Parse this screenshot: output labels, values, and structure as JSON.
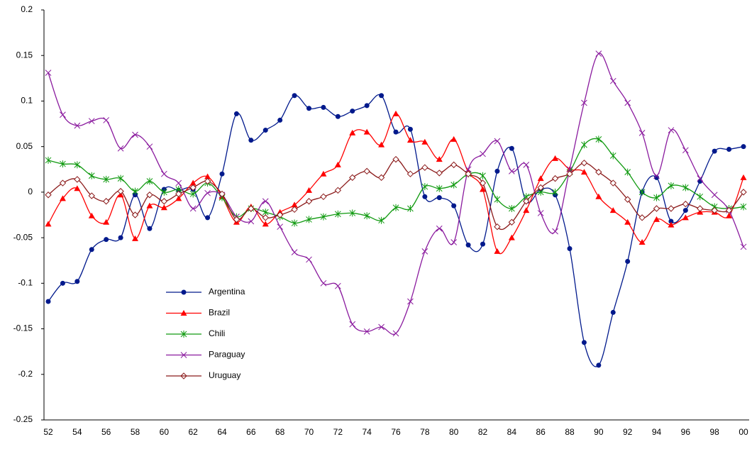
{
  "chart_data": {
    "type": "line",
    "categories": [
      "52",
      null,
      "54",
      null,
      "56",
      null,
      "58",
      null,
      "60",
      null,
      "62",
      null,
      "64",
      null,
      "66",
      null,
      "68",
      null,
      "70",
      null,
      "72",
      null,
      "74",
      null,
      "76",
      null,
      "78",
      null,
      "80",
      null,
      "82",
      null,
      "84",
      null,
      "86",
      null,
      "88",
      null,
      "90",
      null,
      "92",
      null,
      "94",
      null,
      "96",
      null,
      "98",
      null,
      "00"
    ],
    "ylim": [
      -0.25,
      0.2
    ],
    "yticks": [
      -0.25,
      -0.2,
      -0.15,
      -0.1,
      -0.05,
      0,
      0.05,
      0.1,
      0.15,
      0.2
    ],
    "legend": "left",
    "series": [
      {
        "name": "Argentina",
        "color": "#00198c",
        "marker": "circle",
        "values": [
          -0.12,
          -0.1,
          -0.098,
          -0.063,
          -0.052,
          -0.05,
          -0.003,
          -0.04,
          0.003,
          0.002,
          0.003,
          -0.028,
          0.02,
          0.086,
          0.057,
          0.068,
          0.079,
          0.106,
          0.092,
          0.093,
          0.083,
          0.089,
          0.095,
          0.106,
          0.066,
          0.069,
          -0.005,
          -0.006,
          -0.015,
          -0.058,
          -0.057,
          0.023,
          0.048,
          -0.01,
          0.003,
          -0.003,
          -0.062,
          -0.165,
          -0.19,
          -0.132,
          -0.076,
          0,
          0.016,
          -0.032,
          -0.02,
          0.012,
          0.045,
          0.047,
          0.05
        ]
      },
      {
        "name": "Brazil",
        "color": "#ff0000",
        "marker": "triangle",
        "values": [
          -0.035,
          -0.007,
          0.004,
          -0.026,
          -0.033,
          -0.003,
          -0.051,
          -0.015,
          -0.017,
          -0.007,
          0.01,
          0.017,
          -0.005,
          -0.033,
          -0.016,
          -0.035,
          -0.022,
          -0.014,
          0.002,
          0.02,
          0.03,
          0.065,
          0.066,
          0.052,
          0.086,
          0.057,
          0.055,
          0.036,
          0.058,
          0.022,
          0.003,
          -0.065,
          -0.05,
          -0.02,
          0.015,
          0.037,
          0.025,
          0.022,
          -0.005,
          -0.02,
          -0.033,
          -0.055,
          -0.03,
          -0.036,
          -0.028,
          -0.022,
          -0.022,
          -0.026,
          0.016
        ]
      },
      {
        "name": "Chili",
        "color": "#109a10",
        "marker": "star",
        "values": [
          0.035,
          0.031,
          0.03,
          0.018,
          0.014,
          0.015,
          0.001,
          0.012,
          0,
          0.003,
          -0.002,
          0.01,
          -0.006,
          -0.027,
          -0.018,
          -0.022,
          -0.027,
          -0.034,
          -0.03,
          -0.027,
          -0.024,
          -0.023,
          -0.026,
          -0.031,
          -0.017,
          -0.018,
          0.006,
          0.004,
          0.008,
          0.02,
          0.018,
          -0.008,
          -0.018,
          -0.005,
          0,
          0,
          0.022,
          0.052,
          0.058,
          0.04,
          0.022,
          0,
          -0.006,
          0.007,
          0.005,
          -0.005,
          -0.016,
          -0.018,
          -0.016
        ]
      },
      {
        "name": "Paraguay",
        "color": "#8a1a9e",
        "marker": "x",
        "values": [
          0.131,
          0.085,
          0.073,
          0.078,
          0.079,
          0.048,
          0.063,
          0.05,
          0.02,
          0.01,
          -0.018,
          -0.001,
          -0.003,
          -0.027,
          -0.032,
          -0.01,
          -0.038,
          -0.066,
          -0.074,
          -0.1,
          -0.103,
          -0.145,
          -0.153,
          -0.148,
          -0.155,
          -0.12,
          -0.065,
          -0.04,
          -0.055,
          0.025,
          0.042,
          0.056,
          0.023,
          0.03,
          -0.023,
          -0.043,
          0.025,
          0.098,
          0.152,
          0.122,
          0.098,
          0.065,
          0.018,
          0.068,
          0.046,
          0.015,
          -0.003,
          -0.02,
          -0.06
        ]
      },
      {
        "name": "Uruguay",
        "color": "#8b1a1a",
        "marker": "diamond",
        "values": [
          -0.003,
          0.01,
          0.014,
          -0.004,
          -0.01,
          0.001,
          -0.025,
          -0.003,
          -0.01,
          -0.002,
          0.005,
          0.012,
          -0.002,
          -0.03,
          -0.018,
          -0.028,
          -0.025,
          -0.019,
          -0.01,
          -0.005,
          0.002,
          0.016,
          0.023,
          0.016,
          0.036,
          0.02,
          0.027,
          0.021,
          0.03,
          0.02,
          0.01,
          -0.038,
          -0.033,
          -0.01,
          0.005,
          0.015,
          0.02,
          0.032,
          0.022,
          0.01,
          -0.008,
          -0.028,
          -0.018,
          -0.018,
          -0.013,
          -0.018,
          -0.02,
          -0.02,
          0
        ]
      }
    ]
  }
}
